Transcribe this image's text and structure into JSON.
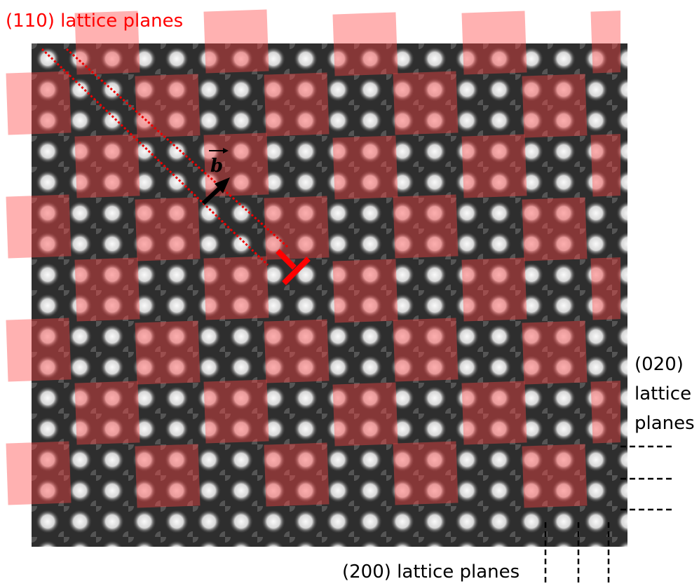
{
  "labels": {
    "top": "(110) lattice planes",
    "burgers_vector": "b",
    "right": [
      "(020)",
      "lattice",
      "planes"
    ],
    "bottom": "(200) lattice planes"
  }
}
